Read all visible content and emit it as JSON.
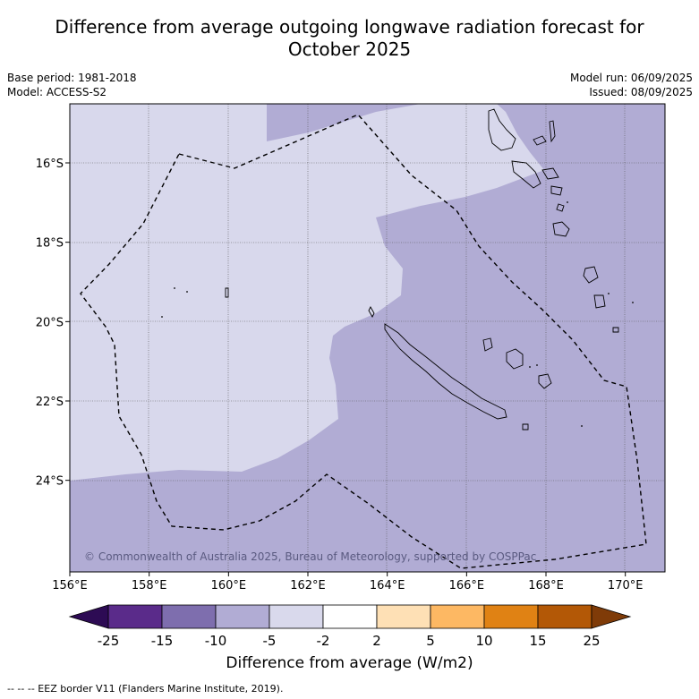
{
  "header": {
    "title_line1": "Difference from average outgoing longwave radiation forecast for",
    "title_line2": "October 2025",
    "base_period": "Base period: 1981-2018",
    "model": "Model: ACCESS-S2",
    "model_run": "Model run: 06/09/2025",
    "issued": "Issued: 08/09/2025"
  },
  "map": {
    "lon_ticks": [
      "156°E",
      "158°E",
      "160°E",
      "162°E",
      "164°E",
      "166°E",
      "168°E",
      "170°E"
    ],
    "lat_ticks": [
      "16°S",
      "18°S",
      "20°S",
      "22°S",
      "24°S"
    ],
    "copyright": "© Commonwealth of Australia 2025, Bureau of Meteorology, supported by COSPPac"
  },
  "colorbar": {
    "labels": [
      "-25",
      "-15",
      "-10",
      "-5",
      "-2",
      "2",
      "5",
      "10",
      "15",
      "25"
    ],
    "colors": [
      "#5a2b8a",
      "#7e6eae",
      "#b1acd4",
      "#d9d9ec",
      "#ffffff",
      "#fee0b5",
      "#fdb863",
      "#e08214",
      "#b35806"
    ],
    "under_color": "#2d0b54",
    "over_color": "#7f3b08",
    "title": "Difference from average (W/m2)"
  },
  "footnote": "--  --  -- EEZ border V11 (Flanders Marine Institute, 2019)."
}
